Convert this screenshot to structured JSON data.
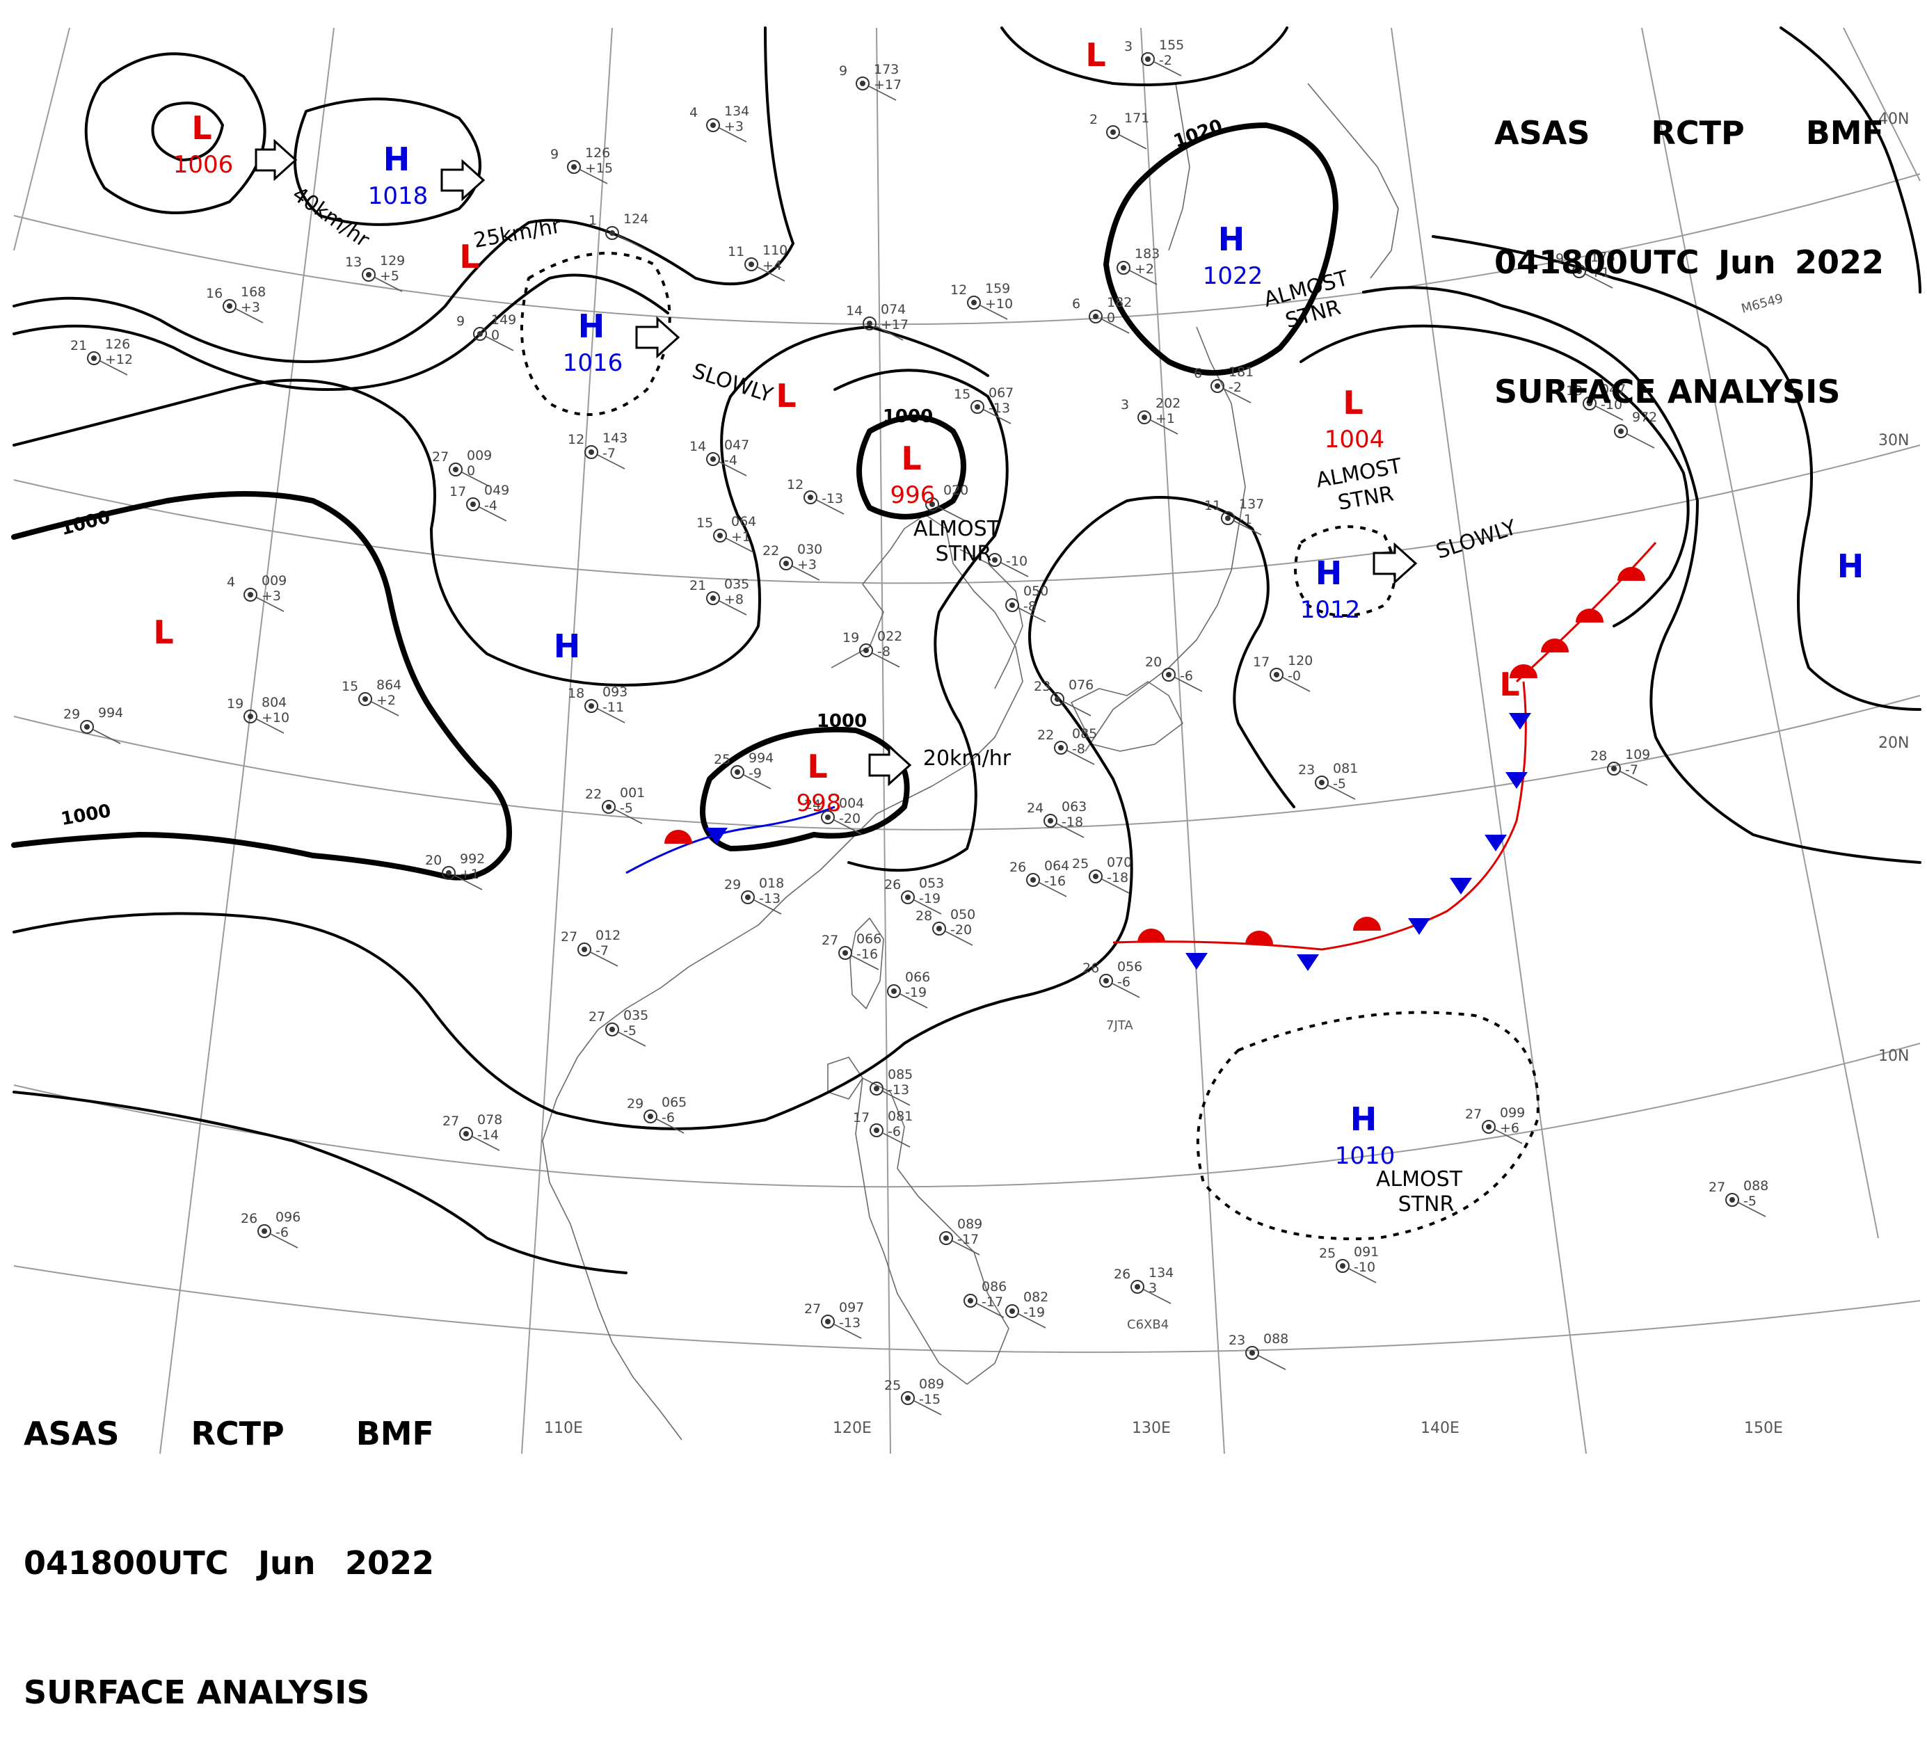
{
  "header": {
    "line1": [
      "ASAS",
      "RCTP",
      "BMF"
    ],
    "line2": [
      "041800UTC",
      "Jun",
      "2022"
    ],
    "line3": "SURFACE ANALYSIS"
  },
  "colors": {
    "low": "#e00000",
    "high": "#0000dd",
    "warm_front": "#e00000",
    "cold_front": "#0000dd",
    "isobar": "#000000",
    "grid": "#9a9a9a"
  },
  "lon_labels": [
    "110E",
    "120E",
    "130E",
    "140E",
    "150E"
  ],
  "lat_labels": [
    "40N",
    "30N",
    "20N",
    "10N"
  ],
  "pressure_centers": [
    {
      "type": "L",
      "value": "1006"
    },
    {
      "type": "H",
      "value": "1018"
    },
    {
      "type": "H",
      "value": "1016"
    },
    {
      "type": "L",
      "value": "996"
    },
    {
      "type": "H",
      "value": "1022"
    },
    {
      "type": "L",
      "value": "1004"
    },
    {
      "type": "H",
      "value": "1012"
    },
    {
      "type": "L",
      "value": "998"
    },
    {
      "type": "H",
      "value": "1010"
    },
    {
      "type": "L",
      "value": ""
    },
    {
      "type": "L",
      "value": ""
    },
    {
      "type": "L",
      "value": ""
    },
    {
      "type": "L",
      "value": ""
    },
    {
      "type": "L",
      "value": ""
    },
    {
      "type": "H",
      "value": ""
    },
    {
      "type": "H",
      "value": ""
    }
  ],
  "isobar_labels": [
    "1000",
    "1000",
    "1000",
    "1000",
    "1020"
  ],
  "motion_labels": [
    "40km/hr",
    "25km/hr",
    "SLOWLY",
    "20km/hr",
    "SLOWLY"
  ],
  "stationary_notes": [
    "ALMOST STNR",
    "ALMOST STNR",
    "ALMOST STNR",
    "ALMOST STNR"
  ],
  "stations": [
    {
      "a": "9",
      "b": "173",
      "c": "+17"
    },
    {
      "a": "3",
      "b": "155",
      "c": "-2"
    },
    {
      "a": "4",
      "b": "134",
      "c": "+3"
    },
    {
      "a": "9",
      "b": "126",
      "c": "+15"
    },
    {
      "a": "2",
      "b": "171",
      "c": ""
    },
    {
      "a": "1",
      "b": "124",
      "c": ""
    },
    {
      "a": "11",
      "b": "110",
      "c": "+4"
    },
    {
      "a": "16",
      "b": "168",
      "c": "+3"
    },
    {
      "a": "21",
      "b": "126",
      "c": "+12"
    },
    {
      "a": "13",
      "b": "129",
      "c": "+5"
    },
    {
      "a": "9",
      "b": "149",
      "c": "0"
    },
    {
      "a": "12",
      "b": "159",
      "c": "+10"
    },
    {
      "a": "14",
      "b": "074",
      "c": "+17"
    },
    {
      "a": "",
      "b": "183",
      "c": "+2"
    },
    {
      "a": "6",
      "b": "182",
      "c": "0"
    },
    {
      "a": "9",
      "b": "175",
      "c": "+1"
    },
    {
      "a": "12",
      "b": "143",
      "c": "-7"
    },
    {
      "a": "27",
      "b": "009",
      "c": "0"
    },
    {
      "a": "17",
      "b": "049",
      "c": "-4"
    },
    {
      "a": "14",
      "b": "047",
      "c": "-4"
    },
    {
      "a": "15",
      "b": "064",
      "c": "+1"
    },
    {
      "a": "12",
      "b": "",
      "c": "-13"
    },
    {
      "a": "15",
      "b": "067",
      "c": "-13"
    },
    {
      "a": "3",
      "b": "202",
      "c": "+1"
    },
    {
      "a": "6",
      "b": "181",
      "c": "-2"
    },
    {
      "a": "13",
      "b": "047",
      "c": "-10"
    },
    {
      "a": "",
      "b": "972",
      "c": ""
    },
    {
      "a": "11",
      "b": "137",
      "c": "-1"
    },
    {
      "a": "22",
      "b": "030",
      "c": "+3"
    },
    {
      "a": "",
      "b": "020",
      "c": ""
    },
    {
      "a": "",
      "b": "",
      "c": "-10"
    },
    {
      "a": "4",
      "b": "009",
      "c": "+3"
    },
    {
      "a": "21",
      "b": "035",
      "c": "+8"
    },
    {
      "a": "",
      "b": "050",
      "c": "-8"
    },
    {
      "a": "19",
      "b": "022",
      "c": "-8"
    },
    {
      "a": "19",
      "b": "804",
      "c": "+10"
    },
    {
      "a": "15",
      "b": "864",
      "c": "+2"
    },
    {
      "a": "18",
      "b": "093",
      "c": "-11"
    },
    {
      "a": "29",
      "b": "994",
      "c": ""
    },
    {
      "a": "20",
      "b": "",
      "c": "-6"
    },
    {
      "a": "17",
      "b": "120",
      "c": "-0"
    },
    {
      "a": "23",
      "b": "076",
      "c": ""
    },
    {
      "a": "22",
      "b": "085",
      "c": "-8"
    },
    {
      "a": "25",
      "b": "994",
      "c": "-9"
    },
    {
      "a": "22",
      "b": "001",
      "c": "-5"
    },
    {
      "a": "24",
      "b": "004",
      "c": "-20"
    },
    {
      "a": "24",
      "b": "063",
      "c": "-18"
    },
    {
      "a": "23",
      "b": "081",
      "c": "-5"
    },
    {
      "a": "28",
      "b": "109",
      "c": "-7"
    },
    {
      "a": "20",
      "b": "992",
      "c": "+1"
    },
    {
      "a": "29",
      "b": "018",
      "c": "-13"
    },
    {
      "a": "26",
      "b": "064",
      "c": "-16"
    },
    {
      "a": "25",
      "b": "070",
      "c": "-18"
    },
    {
      "a": "26",
      "b": "053",
      "c": "-19"
    },
    {
      "a": "28",
      "b": "050",
      "c": "-20"
    },
    {
      "a": "27",
      "b": "012",
      "c": "-7"
    },
    {
      "a": "27",
      "b": "066",
      "c": "-16"
    },
    {
      "a": "",
      "b": "066",
      "c": "-19"
    },
    {
      "a": "26",
      "b": "056",
      "c": "-6"
    },
    {
      "a": "27",
      "b": "035",
      "c": "-5"
    },
    {
      "a": "",
      "b": "085",
      "c": "-13"
    },
    {
      "a": "17",
      "b": "081",
      "c": "-6"
    },
    {
      "a": "27",
      "b": "078",
      "c": "-14"
    },
    {
      "a": "29",
      "b": "065",
      "c": "-6"
    },
    {
      "a": "27",
      "b": "099",
      "c": "+6"
    },
    {
      "a": "27",
      "b": "088",
      "c": "-5"
    },
    {
      "a": "26",
      "b": "096",
      "c": "-6"
    },
    {
      "a": "",
      "b": "089",
      "c": "-17"
    },
    {
      "a": "26",
      "b": "134",
      "c": "3"
    },
    {
      "a": "25",
      "b": "091",
      "c": "-10"
    },
    {
      "a": "27",
      "b": "097",
      "c": "-13"
    },
    {
      "a": "",
      "b": "086",
      "c": "-17"
    },
    {
      "a": "",
      "b": "082",
      "c": "-19"
    },
    {
      "a": "23",
      "b": "088",
      "c": ""
    },
    {
      "a": "25",
      "b": "089",
      "c": "-15"
    }
  ],
  "station_ids": [
    "M6549",
    "7JTA",
    "C6XB4"
  ]
}
